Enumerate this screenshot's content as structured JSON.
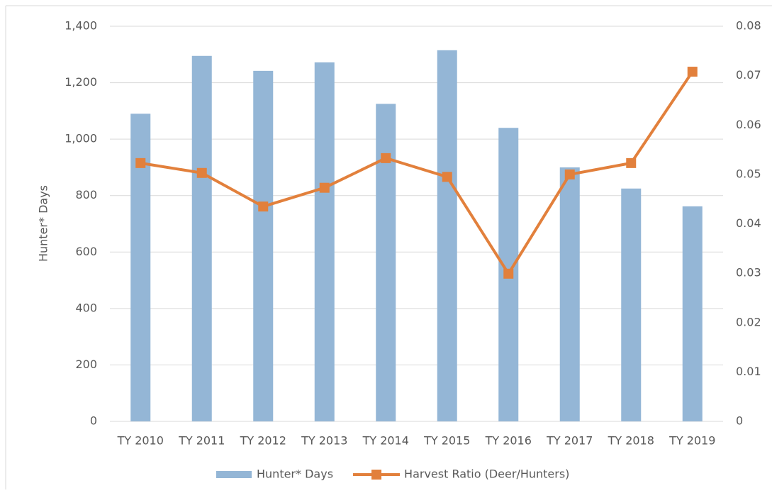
{
  "chart_data": {
    "type": "bar_line",
    "y_label": "Hunter* Days",
    "categories": [
      "TY 2010",
      "TY 2011",
      "TY 2012",
      "TY 2013",
      "TY 2014",
      "TY 2015",
      "TY 2016",
      "TY 2017",
      "TY 2018",
      "TY 2019"
    ],
    "series": [
      {
        "name": "Hunter* Days",
        "type": "bar",
        "color": "#94b6d6",
        "values": [
          1090,
          1295,
          1242,
          1272,
          1125,
          1315,
          1040,
          900,
          825,
          762
        ]
      },
      {
        "name": "Harvest Ratio (Deer/Hunters)",
        "type": "line",
        "axis": "y2",
        "color": "#e2803c",
        "values": [
          0.0523,
          0.0503,
          0.0435,
          0.0473,
          0.0533,
          0.0495,
          0.0299,
          0.05,
          0.0523,
          0.0708
        ]
      }
    ],
    "ylim": [
      0,
      1400
    ],
    "yticks": [
      0,
      200,
      400,
      600,
      800,
      {
        "value": 1000,
        "label": "1,000"
      },
      {
        "value": 1200,
        "label": "1,200"
      },
      {
        "value": 1400,
        "label": "1,400"
      }
    ],
    "y2lim": [
      0,
      0.08
    ],
    "y2ticks": [
      0,
      0.01,
      0.02,
      0.03,
      0.04,
      0.05,
      0.06,
      0.07,
      0.08
    ],
    "grid": true,
    "legend": "bottom"
  }
}
